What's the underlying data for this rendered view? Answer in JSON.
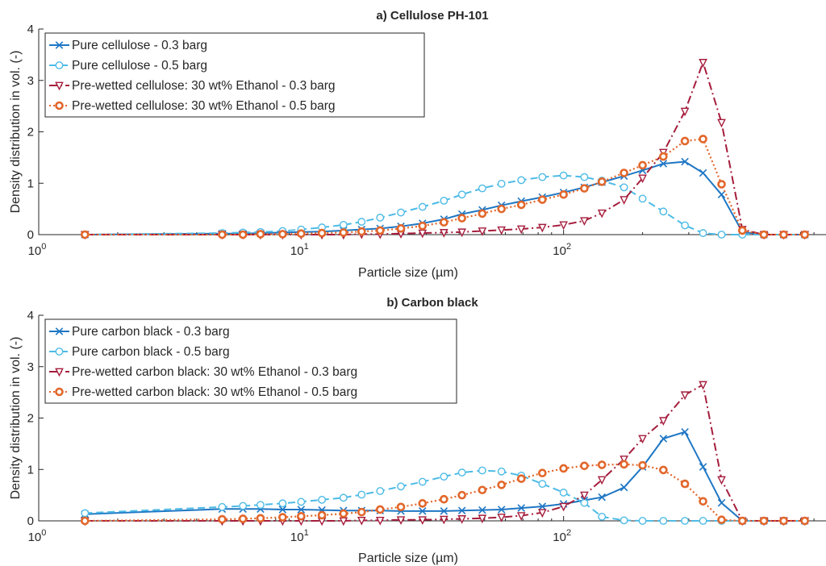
{
  "chart_data": [
    {
      "type": "line",
      "title": "a) Cellulose PH-101",
      "xlabel": "Particle size (µm)",
      "ylabel": "Density distribution in vol. (-)",
      "xscale": "log",
      "xlim": [
        1,
        1000
      ],
      "ylim": [
        0,
        4
      ],
      "yticks": [
        0,
        1,
        2,
        3,
        4
      ],
      "xticks": [
        {
          "base": "10",
          "exp": "0"
        },
        {
          "base": "10",
          "exp": "1"
        },
        {
          "base": "10",
          "exp": "2"
        }
      ],
      "grid": false,
      "legend_position": "top-left",
      "x": [
        1.5,
        5,
        6,
        7,
        8.5,
        10,
        12,
        14.5,
        17,
        20,
        24,
        29,
        35,
        41,
        49,
        58,
        69,
        83,
        100,
        120,
        140,
        170,
        200,
        240,
        290,
        340,
        400,
        480,
        580,
        690,
        830
      ],
      "series": [
        {
          "name": "Pure cellulose - 0.3 barg",
          "color": "#1f77c4",
          "marker": "x",
          "dash": "solid",
          "values": [
            0,
            0.02,
            0.02,
            0.03,
            0.04,
            0.05,
            0.06,
            0.08,
            0.1,
            0.12,
            0.16,
            0.22,
            0.3,
            0.4,
            0.48,
            0.57,
            0.65,
            0.73,
            0.82,
            0.92,
            1.02,
            1.14,
            1.25,
            1.38,
            1.42,
            1.2,
            0.78,
            0.05,
            0,
            0,
            0
          ]
        },
        {
          "name": "Pure cellulose - 0.5 barg",
          "color": "#4dbbe6",
          "marker": "o",
          "dash": "dash",
          "values": [
            0,
            0.03,
            0.04,
            0.05,
            0.07,
            0.1,
            0.14,
            0.19,
            0.25,
            0.33,
            0.43,
            0.54,
            0.66,
            0.78,
            0.9,
            0.99,
            1.06,
            1.12,
            1.15,
            1.12,
            1.05,
            0.92,
            0.7,
            0.45,
            0.18,
            0.03,
            0,
            0,
            0,
            0,
            0
          ]
        },
        {
          "name": "Pre-wetted cellulose: 30 wt% Ethanol - 0.3 barg",
          "color": "#a51d3c",
          "marker": "v",
          "dash": "dashdot",
          "values": [
            0,
            0,
            0,
            0,
            0,
            0,
            0,
            0,
            0.01,
            0.01,
            0.02,
            0.03,
            0.04,
            0.05,
            0.07,
            0.09,
            0.11,
            0.14,
            0.19,
            0.27,
            0.42,
            0.68,
            1.1,
            1.6,
            2.4,
            3.35,
            2.18,
            0.1,
            0,
            0,
            0
          ]
        },
        {
          "name": "Pre-wetted cellulose: 30 wt% Ethanol - 0.5 barg",
          "color": "#e2672b",
          "marker": "s",
          "dash": "dot",
          "values": [
            0,
            0,
            0,
            0.01,
            0.01,
            0.02,
            0.03,
            0.04,
            0.06,
            0.08,
            0.12,
            0.17,
            0.24,
            0.32,
            0.41,
            0.5,
            0.58,
            0.68,
            0.78,
            0.9,
            1.03,
            1.2,
            1.35,
            1.52,
            1.82,
            1.86,
            0.98,
            0.08,
            0,
            0,
            0
          ]
        }
      ]
    },
    {
      "type": "line",
      "title": "b) Carbon black",
      "xlabel": "Particle size (µm)",
      "ylabel": "Density distribution in vol. (-)",
      "xscale": "log",
      "xlim": [
        1,
        1000
      ],
      "ylim": [
        0,
        4
      ],
      "yticks": [
        0,
        1,
        2,
        3,
        4
      ],
      "xticks": [
        {
          "base": "10",
          "exp": "0"
        },
        {
          "base": "10",
          "exp": "1"
        },
        {
          "base": "10",
          "exp": "2"
        }
      ],
      "grid": false,
      "legend_position": "top-left",
      "x": [
        1.5,
        5,
        6,
        7,
        8.5,
        10,
        12,
        14.5,
        17,
        20,
        24,
        29,
        35,
        41,
        49,
        58,
        69,
        83,
        100,
        120,
        140,
        170,
        200,
        240,
        290,
        340,
        400,
        480,
        580,
        690,
        830
      ],
      "series": [
        {
          "name": "Pure carbon black - 0.3 barg",
          "color": "#1f77c4",
          "marker": "x",
          "dash": "solid",
          "values": [
            0.13,
            0.23,
            0.23,
            0.23,
            0.22,
            0.22,
            0.21,
            0.2,
            0.2,
            0.2,
            0.19,
            0.19,
            0.19,
            0.2,
            0.21,
            0.22,
            0.25,
            0.28,
            0.33,
            0.4,
            0.46,
            0.65,
            1.05,
            1.6,
            1.73,
            1.05,
            0.35,
            0,
            0,
            0,
            0
          ]
        },
        {
          "name": "Pure carbon black - 0.5 barg",
          "color": "#4dbbe6",
          "marker": "o",
          "dash": "dash",
          "values": [
            0.15,
            0.27,
            0.29,
            0.31,
            0.34,
            0.37,
            0.41,
            0.45,
            0.51,
            0.58,
            0.67,
            0.76,
            0.86,
            0.94,
            0.98,
            0.96,
            0.88,
            0.72,
            0.55,
            0.35,
            0.08,
            0.01,
            0,
            0,
            0,
            0,
            0,
            0,
            0,
            0,
            0
          ]
        },
        {
          "name": "Pre-wetted carbon black: 30 wt% Ethanol - 0.3 barg",
          "color": "#a51d3c",
          "marker": "v",
          "dash": "dashdot",
          "values": [
            0,
            0,
            0,
            0,
            0,
            0,
            0,
            0,
            0.01,
            0.01,
            0.02,
            0.02,
            0.03,
            0.04,
            0.05,
            0.07,
            0.1,
            0.16,
            0.28,
            0.5,
            0.8,
            1.2,
            1.6,
            1.95,
            2.45,
            2.65,
            0.8,
            0,
            0,
            0,
            0
          ]
        },
        {
          "name": "Pre-wetted carbon black: 30 wt% Ethanol - 0.5 barg",
          "color": "#e2672b",
          "marker": "s",
          "dash": "dot",
          "values": [
            0,
            0.03,
            0.04,
            0.05,
            0.07,
            0.09,
            0.11,
            0.14,
            0.17,
            0.22,
            0.27,
            0.34,
            0.42,
            0.5,
            0.6,
            0.7,
            0.82,
            0.93,
            1.02,
            1.07,
            1.09,
            1.1,
            1.08,
            0.99,
            0.72,
            0.38,
            0.02,
            0,
            0,
            0,
            0
          ]
        }
      ]
    }
  ]
}
